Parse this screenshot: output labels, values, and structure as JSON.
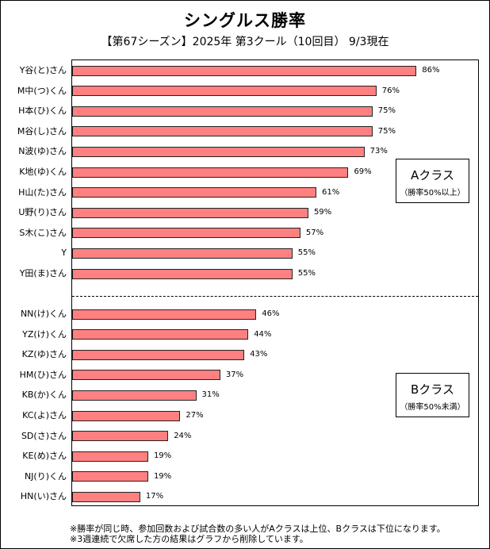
{
  "chart_data": {
    "type": "bar",
    "orientation": "horizontal",
    "title": "シングルス勝率",
    "subtitle": "【第67シーズン】2025年 第3クール（10回目） 9/3現在",
    "xlim": [
      0,
      100
    ],
    "value_suffix": "%",
    "groups": [
      {
        "label": "Aクラス",
        "note": "（勝率50%以上）",
        "categories": [
          "Y谷(と)さん",
          "M中(つ)くん",
          "H本(ひ)くん",
          "M谷(し)さん",
          "N波(ゆ)さん",
          "K地(ゆ)くん",
          "H山(た)さん",
          "U野(り)さん",
          "S木(こ)さん",
          "Y",
          "Y田(ま)さん"
        ],
        "values": [
          86,
          76,
          75,
          75,
          73,
          69,
          61,
          59,
          57,
          55,
          55
        ]
      },
      {
        "label": "Bクラス",
        "note": "（勝率50%未満）",
        "categories": [
          "NN(け)くん",
          "YZ(け)くん",
          "KZ(ゆ)さん",
          "HM(ひ)さん",
          "KB(か)くん",
          "KC(よ)さん",
          "SD(さ)さん",
          "KE(め)さん",
          "NJ(り)くん",
          "HN(い)さん"
        ],
        "values": [
          46,
          44,
          43,
          37,
          31,
          27,
          24,
          19,
          19,
          17
        ]
      }
    ],
    "bar_color": "#ff8080",
    "grid": false
  },
  "footnotes": [
    "※勝率が同じ時、参加回数および試合数の多い人がAクラスは上位、Bクラスは下位になります。",
    "※3週連続で欠席した方の結果はグラフから削除しています。"
  ]
}
